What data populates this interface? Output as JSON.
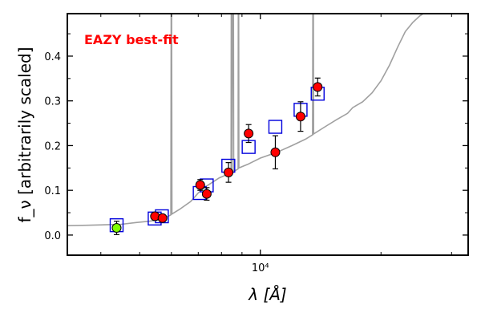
{
  "chart_data": {
    "type": "scatter",
    "title": "",
    "xlabel": "λ [Å]",
    "ylabel": "f_ν [arbitrarily scaled]",
    "xscale": "log",
    "xlim": [
      3300,
      33000
    ],
    "ylim": [
      -0.045,
      0.495
    ],
    "grid": false,
    "legend": "none",
    "x_ticks": [
      {
        "value": 10000,
        "label": "10⁴"
      }
    ],
    "y_ticks": [
      {
        "value": 0.0,
        "label": "0.0"
      },
      {
        "value": 0.1,
        "label": "0.1"
      },
      {
        "value": 0.2,
        "label": "0.2"
      },
      {
        "value": 0.3,
        "label": "0.3"
      },
      {
        "value": 0.4,
        "label": "0.4"
      }
    ],
    "annotation": {
      "text": "EAZY best-fit",
      "color": "#ff0000"
    },
    "template_spectrum": {
      "color": "#a0a0a0",
      "points": [
        [
          3300,
          0.021
        ],
        [
          3700,
          0.022
        ],
        [
          4100,
          0.023
        ],
        [
          4500,
          0.024
        ],
        [
          4900,
          0.028
        ],
        [
          5300,
          0.031
        ],
        [
          5700,
          0.036
        ],
        [
          5980,
          0.045
        ],
        [
          6000,
          0.8
        ],
        [
          6020,
          0.047
        ],
        [
          6300,
          0.058
        ],
        [
          6700,
          0.075
        ],
        [
          7000,
          0.094
        ],
        [
          7300,
          0.108
        ],
        [
          7600,
          0.118
        ],
        [
          7900,
          0.128
        ],
        [
          8200,
          0.134
        ],
        [
          8450,
          0.138
        ],
        [
          8470,
          0.8
        ],
        [
          8490,
          0.14
        ],
        [
          8560,
          0.8
        ],
        [
          8580,
          0.142
        ],
        [
          8800,
          0.148
        ],
        [
          8820,
          0.8
        ],
        [
          8840,
          0.15
        ],
        [
          9300,
          0.158
        ],
        [
          10000,
          0.172
        ],
        [
          11000,
          0.185
        ],
        [
          12000,
          0.2
        ],
        [
          13000,
          0.215
        ],
        [
          13500,
          0.224
        ],
        [
          13540,
          0.8
        ],
        [
          13580,
          0.226
        ],
        [
          14500,
          0.242
        ],
        [
          15500,
          0.258
        ],
        [
          16500,
          0.272
        ],
        [
          17000,
          0.285
        ],
        [
          18000,
          0.298
        ],
        [
          19000,
          0.318
        ],
        [
          20000,
          0.345
        ],
        [
          21000,
          0.38
        ],
        [
          22000,
          0.42
        ],
        [
          23000,
          0.455
        ],
        [
          24000,
          0.475
        ],
        [
          25000,
          0.49
        ],
        [
          26000,
          0.5
        ]
      ]
    },
    "model_fluxes": {
      "color": "#0000dd",
      "points": [
        [
          4380,
          0.022
        ],
        [
          5450,
          0.037
        ],
        [
          5680,
          0.042
        ],
        [
          7060,
          0.094
        ],
        [
          7350,
          0.111
        ],
        [
          8320,
          0.155
        ],
        [
          9350,
          0.197
        ],
        [
          10900,
          0.242
        ],
        [
          12600,
          0.28
        ],
        [
          13900,
          0.316
        ]
      ]
    },
    "observed_photometry": {
      "color": "#ff0000",
      "highlight_color": "#7fff00",
      "points": [
        {
          "x": 4380,
          "y": 0.016,
          "err": 0.015,
          "highlight": true
        },
        {
          "x": 5460,
          "y": 0.042,
          "err": 0.008
        },
        {
          "x": 5700,
          "y": 0.038,
          "err": 0.008
        },
        {
          "x": 7080,
          "y": 0.112,
          "err": 0.012
        },
        {
          "x": 7350,
          "y": 0.092,
          "err": 0.014
        },
        {
          "x": 8330,
          "y": 0.14,
          "err": 0.022
        },
        {
          "x": 9350,
          "y": 0.227,
          "err": 0.02
        },
        {
          "x": 10900,
          "y": 0.185,
          "err": 0.037
        },
        {
          "x": 12600,
          "y": 0.265,
          "err": 0.033
        },
        {
          "x": 13900,
          "y": 0.331,
          "err": 0.02
        }
      ]
    }
  }
}
